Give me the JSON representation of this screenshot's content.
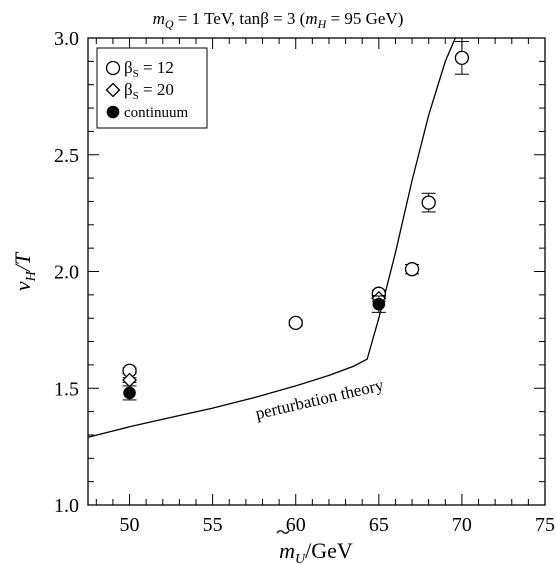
{
  "chart_data": {
    "type": "scatter",
    "title_parts": {
      "m": "m",
      "m_sub": "Q",
      "m_val": " = 1 TeV,  tan",
      "beta": "β",
      "tb_val": " = 3 (",
      "mh": "m",
      "mh_sub": "H",
      "mh_val": " = 95 GeV)"
    },
    "xlabel_parts": {
      "main": "m",
      "sub": "U",
      "unit": "/GeV"
    },
    "ylabel_parts": {
      "main": "v",
      "sub": "H",
      "unit": "/T"
    },
    "xlim": [
      47.5,
      75
    ],
    "ylim": [
      1.0,
      3.0
    ],
    "xticks": [
      50,
      55,
      60,
      65,
      70,
      75
    ],
    "yticks": [
      1.0,
      1.5,
      2.0,
      2.5,
      3.0
    ],
    "xtick_labels": [
      "50",
      "55",
      "60",
      "65",
      "70",
      "75"
    ],
    "ytick_labels": [
      "1.0",
      "1.5",
      "2.0",
      "2.5",
      "3.0"
    ],
    "legend": {
      "position": "top-left",
      "entries": [
        {
          "marker": "circle-open",
          "label_main": "β",
          "label_sub": "S",
          "label_val": " = 12"
        },
        {
          "marker": "diamond-open",
          "label_main": "β",
          "label_sub": "S",
          "label_val": " = 20"
        },
        {
          "marker": "circle-filled",
          "label_main": "continuum",
          "label_sub": "",
          "label_val": ""
        }
      ]
    },
    "series": [
      {
        "marker": "circle-open",
        "points": [
          {
            "x": 50,
            "y": 1.575,
            "err": 0.012
          },
          {
            "x": 60,
            "y": 1.78,
            "err": 0.012
          },
          {
            "x": 65,
            "y": 1.905,
            "err": 0.015
          },
          {
            "x": 67,
            "y": 2.01,
            "err": 0.02
          },
          {
            "x": 68,
            "y": 2.295,
            "err": 0.04
          },
          {
            "x": 70,
            "y": 2.915,
            "err": 0.07
          }
        ]
      },
      {
        "marker": "diamond-open",
        "points": [
          {
            "x": 50,
            "y": 1.535,
            "err": 0.01
          },
          {
            "x": 65,
            "y": 1.885,
            "err": 0.012
          }
        ]
      },
      {
        "marker": "circle-filled",
        "points": [
          {
            "x": 50,
            "y": 1.48,
            "err": 0.03
          },
          {
            "x": 65,
            "y": 1.86,
            "err": 0.035
          }
        ]
      }
    ],
    "curve": {
      "label": "perturbation theory",
      "points": [
        [
          47.5,
          1.29
        ],
        [
          50,
          1.335
        ],
        [
          52.5,
          1.375
        ],
        [
          55,
          1.415
        ],
        [
          57.5,
          1.46
        ],
        [
          60,
          1.51
        ],
        [
          62,
          1.555
        ],
        [
          63.5,
          1.595
        ],
        [
          64.3,
          1.625
        ],
        [
          65,
          1.8
        ],
        [
          66,
          2.08
        ],
        [
          67,
          2.39
        ],
        [
          68,
          2.67
        ],
        [
          69,
          2.9
        ],
        [
          69.6,
          3.0
        ]
      ],
      "label_at": [
        61.5,
        1.43
      ],
      "label_angle_deg": -13
    }
  }
}
